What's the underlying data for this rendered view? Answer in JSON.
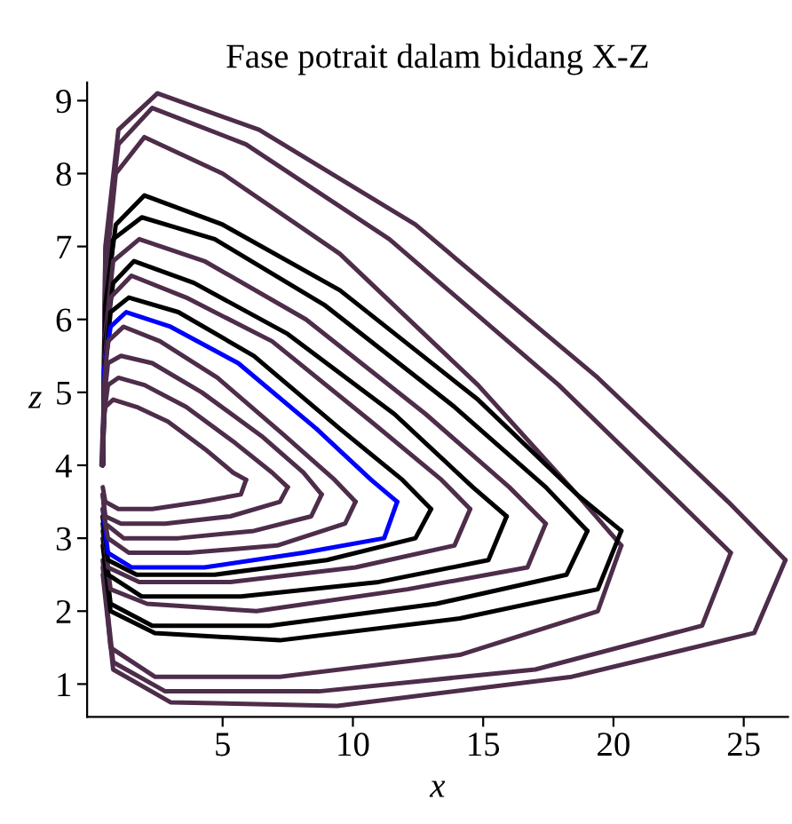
{
  "chart_data": {
    "type": "line",
    "title": "Fase potrait dalam bidang X-Z",
    "xlabel": "x",
    "ylabel": "z",
    "xlim": [
      -0.2,
      26.7
    ],
    "ylim": [
      0.55,
      9.25
    ],
    "xticks": [
      5,
      10,
      15,
      20,
      25
    ],
    "yticks": [
      1,
      2,
      3,
      4,
      5,
      6,
      7,
      8,
      9
    ],
    "grid": false,
    "legend": false,
    "marker": "none",
    "line_style": "solid",
    "series": [
      {
        "color": "#4d2d4a",
        "x": [
          0.4,
          0.5,
          1.0,
          2.5,
          6.4,
          12.4,
          19.4,
          24.4,
          26.6
        ],
        "values": [
          4,
          7,
          8.6,
          9.1,
          8.6,
          7.3,
          5.2,
          3.5,
          2.7
        ]
      },
      {
        "color": "#4d2d4a",
        "x": [
          0.4,
          0.8,
          3.0,
          9.4,
          18.4,
          25.4,
          26.6
        ],
        "values": [
          2.5,
          1.2,
          0.75,
          0.7,
          1.1,
          1.7,
          2.7
        ]
      },
      {
        "color": "#4d2d4a",
        "x": [
          0.4,
          0.5,
          1.0,
          2.3,
          5.9,
          11.4,
          17.9,
          22.5,
          24.5
        ],
        "values": [
          4,
          6.9,
          8.4,
          8.9,
          8.4,
          7.1,
          5.1,
          3.5,
          2.8
        ]
      },
      {
        "color": "#4d2d4a",
        "x": [
          0.4,
          0.8,
          2.8,
          8.7,
          17.0,
          23.4,
          24.5
        ],
        "values": [
          2.6,
          1.3,
          0.9,
          0.9,
          1.2,
          1.8,
          2.8
        ]
      },
      {
        "color": "#4d2d4a",
        "x": [
          0.4,
          0.5,
          0.9,
          2.0,
          5.0,
          9.5,
          14.8,
          18.6,
          20.3
        ],
        "values": [
          4,
          6.6,
          8.0,
          8.5,
          8.0,
          6.9,
          5.1,
          3.6,
          2.9
        ]
      },
      {
        "color": "#4d2d4a",
        "x": [
          0.4,
          0.7,
          2.4,
          7.2,
          14.1,
          19.4,
          20.3
        ],
        "values": [
          2.7,
          1.5,
          1.1,
          1.1,
          1.4,
          2.0,
          2.9
        ]
      },
      {
        "color": "#000000",
        "x": [
          0.4,
          0.5,
          0.9,
          2.0,
          5.0,
          9.5,
          14.8,
          18.6,
          20.3
        ],
        "values": [
          4,
          6.2,
          7.3,
          7.7,
          7.3,
          6.4,
          4.9,
          3.6,
          3.1
        ]
      },
      {
        "color": "#000000",
        "x": [
          0.4,
          0.7,
          2.4,
          7.2,
          14.1,
          19.4,
          20.3
        ],
        "values": [
          2.9,
          2.0,
          1.7,
          1.6,
          1.9,
          2.3,
          3.1
        ]
      },
      {
        "color": "#000000",
        "x": [
          0.4,
          0.5,
          0.8,
          1.9,
          4.7,
          8.9,
          13.9,
          17.4,
          19.0
        ],
        "values": [
          4,
          6.0,
          7.1,
          7.4,
          7.1,
          6.2,
          4.8,
          3.7,
          3.1
        ]
      },
      {
        "color": "#000000",
        "x": [
          0.4,
          0.7,
          2.3,
          6.8,
          13.2,
          18.2,
          19.0
        ],
        "values": [
          3.0,
          2.1,
          1.8,
          1.8,
          2.1,
          2.5,
          3.1
        ]
      },
      {
        "color": "#4d2d4a",
        "x": [
          0.4,
          0.5,
          0.8,
          1.8,
          4.3,
          8.2,
          12.8,
          16.0,
          17.4
        ],
        "values": [
          4,
          5.8,
          6.8,
          7.1,
          6.8,
          6.0,
          4.7,
          3.7,
          3.2
        ]
      },
      {
        "color": "#4d2d4a",
        "x": [
          0.4,
          0.7,
          2.1,
          6.3,
          12.1,
          16.7,
          17.4
        ],
        "values": [
          3.1,
          2.3,
          2.1,
          2.0,
          2.3,
          2.6,
          3.2
        ]
      },
      {
        "color": "#000000",
        "x": [
          0.4,
          0.5,
          0.8,
          1.6,
          3.9,
          7.5,
          11.6,
          14.6,
          15.9
        ],
        "values": [
          4,
          5.7,
          6.5,
          6.8,
          6.5,
          5.8,
          4.7,
          3.7,
          3.3
        ]
      },
      {
        "color": "#000000",
        "x": [
          0.4,
          0.6,
          1.9,
          5.7,
          11.0,
          15.2,
          15.9
        ],
        "values": [
          3.2,
          2.5,
          2.2,
          2.2,
          2.4,
          2.7,
          3.3
        ]
      },
      {
        "color": "#4d2d4a",
        "x": [
          0.4,
          0.5,
          0.7,
          1.5,
          3.6,
          6.9,
          10.7,
          13.4,
          14.5
        ],
        "values": [
          4,
          5.5,
          6.3,
          6.6,
          6.3,
          5.7,
          4.6,
          3.8,
          3.4
        ]
      },
      {
        "color": "#4d2d4a",
        "x": [
          0.4,
          0.6,
          1.8,
          5.3,
          10.1,
          13.9,
          14.5
        ],
        "values": [
          3.3,
          2.6,
          2.4,
          2.4,
          2.6,
          2.9,
          3.4
        ]
      },
      {
        "color": "#000000",
        "x": [
          0.4,
          0.5,
          0.7,
          1.4,
          3.3,
          6.2,
          9.5,
          11.9,
          13.0
        ],
        "values": [
          4,
          5.4,
          6.1,
          6.3,
          6.1,
          5.5,
          4.5,
          3.8,
          3.4
        ]
      },
      {
        "color": "#000000",
        "x": [
          0.4,
          0.6,
          1.7,
          4.7,
          9.0,
          12.4,
          13.0
        ],
        "values": [
          3.3,
          2.7,
          2.5,
          2.5,
          2.7,
          3.0,
          3.4
        ]
      },
      {
        "color": "#0000ff",
        "x": [
          0.4,
          0.45,
          0.7,
          1.3,
          3.0,
          5.6,
          8.6,
          10.7,
          11.7
        ],
        "values": [
          4,
          5.3,
          5.9,
          6.1,
          5.9,
          5.4,
          4.5,
          3.8,
          3.5
        ]
      },
      {
        "color": "#0000ff",
        "x": [
          0.4,
          0.6,
          1.5,
          4.3,
          8.1,
          11.2,
          11.7
        ],
        "values": [
          3.4,
          2.8,
          2.6,
          2.6,
          2.8,
          3.0,
          3.5
        ]
      },
      {
        "color": "#4d2d4a",
        "x": [
          0.4,
          0.45,
          0.6,
          1.2,
          2.6,
          4.8,
          7.4,
          9.3,
          10.1
        ],
        "values": [
          4,
          5.1,
          5.7,
          5.9,
          5.7,
          5.2,
          4.4,
          3.8,
          3.5
        ]
      },
      {
        "color": "#4d2d4a",
        "x": [
          0.4,
          0.6,
          1.4,
          3.7,
          7.1,
          9.7,
          10.1
        ],
        "values": [
          3.4,
          3.0,
          2.8,
          2.8,
          2.9,
          3.2,
          3.5
        ]
      },
      {
        "color": "#4d2d4a",
        "x": [
          0.4,
          0.45,
          0.6,
          1.1,
          2.3,
          4.2,
          6.5,
          8.1,
          8.8
        ],
        "values": [
          4,
          4.9,
          5.4,
          5.5,
          5.4,
          5.0,
          4.4,
          3.9,
          3.6
        ]
      },
      {
        "color": "#4d2d4a",
        "x": [
          0.4,
          0.5,
          1.2,
          3.3,
          6.2,
          8.4,
          8.8
        ],
        "values": [
          3.6,
          3.2,
          3.0,
          3.0,
          3.1,
          3.3,
          3.6
        ]
      },
      {
        "color": "#4d2d4a",
        "x": [
          0.4,
          0.45,
          0.6,
          1.0,
          2.0,
          3.6,
          5.5,
          6.9,
          7.5
        ],
        "values": [
          4,
          4.7,
          5.1,
          5.2,
          5.1,
          4.8,
          4.3,
          3.9,
          3.7
        ]
      },
      {
        "color": "#4d2d4a",
        "x": [
          0.4,
          0.5,
          1.1,
          2.8,
          5.3,
          7.2,
          7.5
        ],
        "values": [
          3.6,
          3.3,
          3.2,
          3.2,
          3.3,
          3.5,
          3.7
        ]
      },
      {
        "color": "#4d2d4a",
        "x": [
          0.35,
          0.4,
          0.5,
          0.8,
          1.7,
          2.9,
          4.4,
          5.4,
          5.9
        ],
        "values": [
          4,
          4.5,
          4.8,
          4.9,
          4.8,
          4.6,
          4.2,
          3.9,
          3.8
        ]
      },
      {
        "color": "#4d2d4a",
        "x": [
          0.4,
          0.5,
          1.0,
          2.3,
          4.2,
          5.7,
          5.9
        ],
        "values": [
          3.7,
          3.5,
          3.4,
          3.4,
          3.5,
          3.6,
          3.8
        ]
      }
    ]
  }
}
